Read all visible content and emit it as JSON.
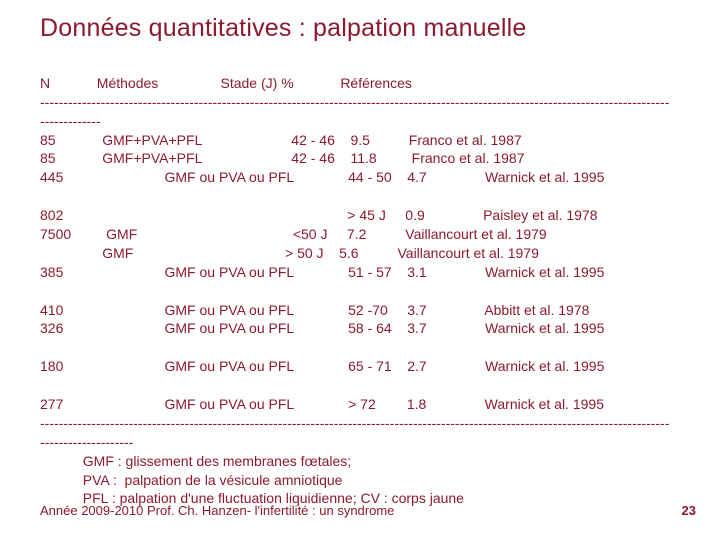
{
  "title": "Données quantitatives : palpation manuelle",
  "colors": {
    "accent": "#8b1a2f",
    "background": "#ffffff"
  },
  "typography": {
    "title_fontsize": 25,
    "body_fontsize": 14,
    "footer_fontsize": 13
  },
  "header_row": "N            Méthodes                Stade (J) %            Références",
  "dashline1": "---------------------------------------------------------------------------------------------------------------------------------------",
  "dashline1b": "-------------",
  "rows": [
    "85            GMF+PVA+PFL                       42 - 46    9.5          Franco et al. 1987",
    "85            GMF+PVA+PFL                       42 - 46    11.8         Franco et al. 1987",
    "445                          GMF ou PVA ou PFL              44 - 50    4.7               Warnick et al. 1995",
    "",
    "802                                                                         > 45 J     0.9               Paisley et al. 1978",
    "7500         GMF                                        <50 J     7.2          Vaillancourt et al. 1979",
    "                GMF                                       > 50 J    5.6          Vaillancourt et al. 1979",
    "385                          GMF ou PVA ou PFL              51 - 57    3.1               Warnick et al. 1995",
    "",
    "410                          GMF ou PVA ou PFL              52 -70     3.7               Abbitt et al. 1978",
    "326                          GMF ou PVA ou PFL              58 - 64    3.7               Warnick et al. 1995",
    "",
    "180                          GMF ou PVA ou PFL              65 - 71    2.7               Warnick et al. 1995",
    "",
    "277                          GMF ou PVA ou PFL              > 72        1.8               Warnick et al. 1995"
  ],
  "dashline2": "---------------------------------------------------------------------------------------------------------------------------------------",
  "dashline2b": "--------------------",
  "legend": [
    "           GMF : glissement des membranes fœtales;",
    "           PVA :  palpation de la vésicule amniotique",
    "           PFL : palpation d'une fluctuation liquidienne; CV : corps jaune"
  ],
  "footer_overlay": "Année 2009-2010 Prof. Ch. Hanzen- l'infertilité : un syndrome",
  "page_number": "23"
}
